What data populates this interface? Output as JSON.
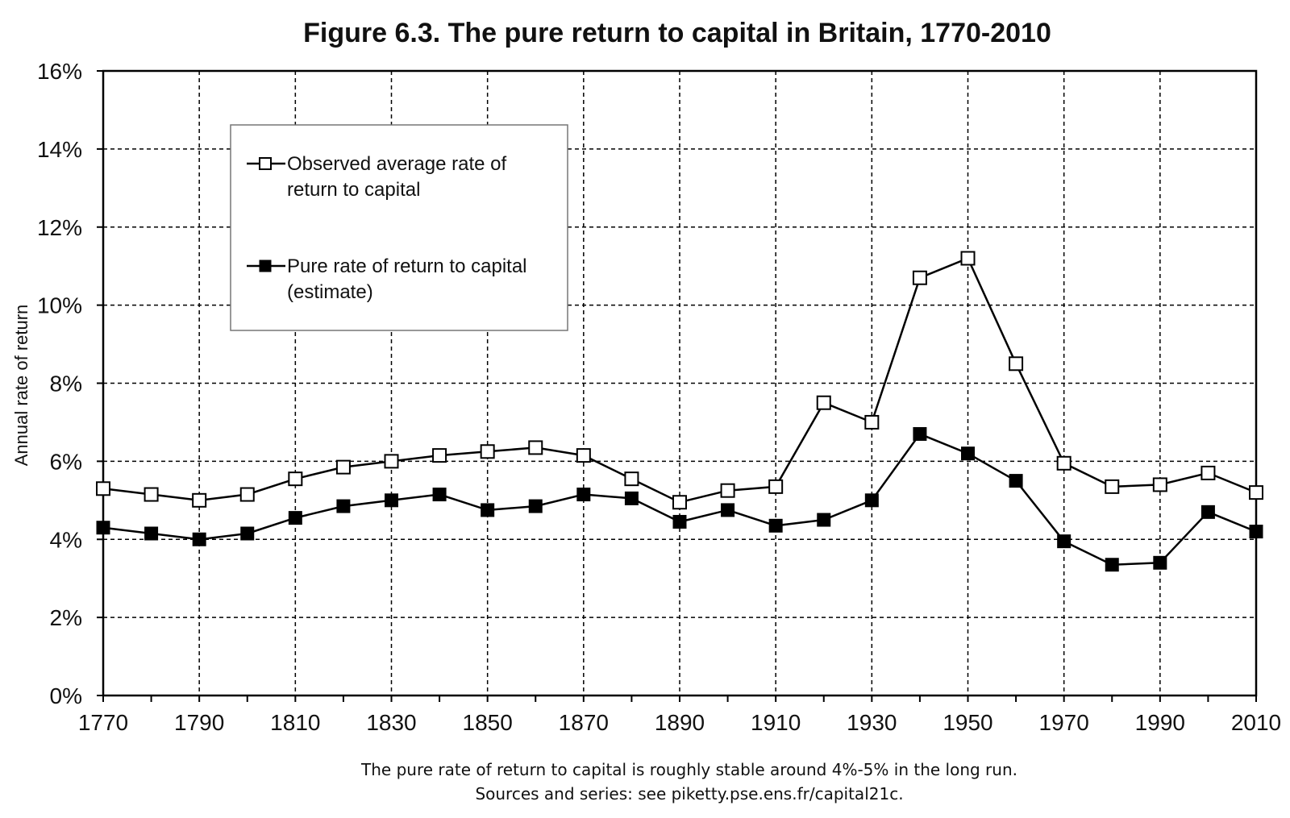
{
  "chart_data": {
    "type": "line",
    "title": "Figure 6.3. The pure return to capital in Britain, 1770-2010",
    "ylabel": "Annual rate of return",
    "xlabel": "",
    "x": [
      1770,
      1780,
      1790,
      1800,
      1810,
      1820,
      1830,
      1840,
      1850,
      1860,
      1870,
      1880,
      1890,
      1900,
      1910,
      1920,
      1930,
      1940,
      1950,
      1960,
      1970,
      1980,
      1990,
      2000,
      2010
    ],
    "x_ticks": [
      1770,
      1790,
      1810,
      1830,
      1850,
      1870,
      1890,
      1910,
      1930,
      1950,
      1970,
      1990,
      2010
    ],
    "x_tick_labels": [
      "1770",
      "1790",
      "1810",
      "1830",
      "1850",
      "1870",
      "1890",
      "1910",
      "1930",
      "1950",
      "1970",
      "1990",
      "2010"
    ],
    "xlim": [
      1770,
      2010
    ],
    "ylim": [
      0,
      16
    ],
    "y_ticks": [
      0,
      2,
      4,
      6,
      8,
      10,
      12,
      14,
      16
    ],
    "y_tick_labels": [
      "0%",
      "2%",
      "4%",
      "6%",
      "8%",
      "10%",
      "12%",
      "14%",
      "16%"
    ],
    "grid": true,
    "legend_position": "top-left",
    "series": [
      {
        "name_lines": [
          "Observed average rate of",
          "return to capital"
        ],
        "marker": "open-square",
        "color": "#000000",
        "values": [
          5.3,
          5.15,
          5.0,
          5.15,
          5.55,
          5.85,
          6.0,
          6.15,
          6.25,
          6.35,
          6.15,
          5.55,
          4.95,
          5.25,
          5.35,
          7.5,
          7.0,
          10.7,
          11.2,
          8.5,
          5.95,
          5.35,
          5.4,
          5.7,
          5.2
        ]
      },
      {
        "name_lines": [
          "Pure rate of return to capital",
          "(estimate)"
        ],
        "marker": "filled-square",
        "color": "#000000",
        "values": [
          4.3,
          4.15,
          4.0,
          4.15,
          4.55,
          4.85,
          5.0,
          5.15,
          4.75,
          4.85,
          5.15,
          5.05,
          4.45,
          4.75,
          4.35,
          4.5,
          5.0,
          6.7,
          6.2,
          5.5,
          3.95,
          3.35,
          3.4,
          4.7,
          4.2
        ]
      }
    ],
    "notes": [
      "The pure rate of return to capital is roughly stable around 4%-5% in the long run.",
      "Sources and series: see piketty.pse.ens.fr/capital21c."
    ]
  }
}
